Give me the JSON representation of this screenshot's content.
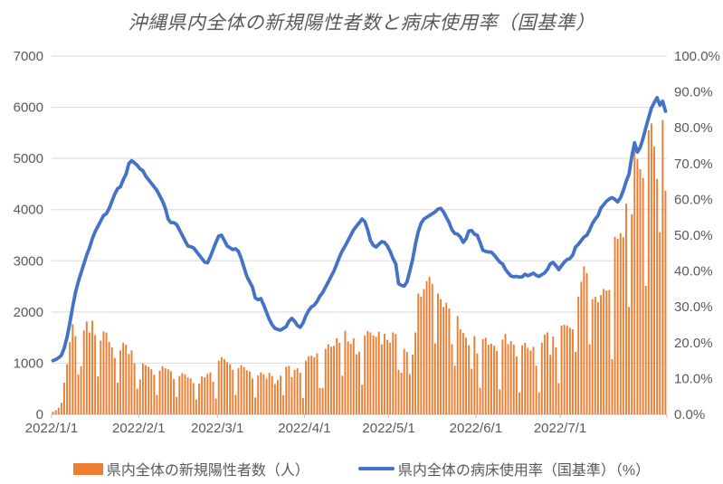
{
  "title": "沖縄県内全体の新規陽性者数と病床使用率（国基準）",
  "chart_data": {
    "type": "combo-bar-line",
    "grid": true,
    "legend_position": "bottom",
    "x_tick_labels": [
      "2022/1/1",
      "2022/2/1",
      "2022/3/1",
      "2022/4/1",
      "2022/5/1",
      "2022/6/1",
      "2022/7/1"
    ],
    "x_tick_day_index": [
      0,
      31,
      59,
      90,
      120,
      151,
      181
    ],
    "left_axis": {
      "min": 0,
      "max": 7000,
      "step": 1000,
      "ticks": [
        "0",
        "1000",
        "2000",
        "3000",
        "4000",
        "5000",
        "6000",
        "7000"
      ]
    },
    "right_axis": {
      "min": 0,
      "max": 100,
      "step": 10,
      "ticks": [
        "0.0%",
        "10.0%",
        "20.0%",
        "30.0%",
        "40.0%",
        "50.0%",
        "60.0%",
        "70.0%",
        "80.0%",
        "90.0%",
        "100.0%"
      ]
    },
    "series": [
      {
        "name": "県内全体の新規陽性者数（人）",
        "type": "bar",
        "axis": "left",
        "color": "#ED7D31",
        "start_date": "2022/1/1",
        "values": [
          50,
          80,
          130,
          225,
          620,
          980,
          1410,
          1760,
          1530,
          780,
          940,
          1640,
          1815,
          1600,
          1830,
          1550,
          740,
          1440,
          1620,
          1600,
          1415,
          1310,
          1100,
          620,
          1250,
          1400,
          1360,
          1180,
          1250,
          1000,
          500,
          680,
          995,
          960,
          930,
          880,
          775,
          380,
          855,
          940,
          900,
          880,
          840,
          690,
          340,
          750,
          805,
          780,
          720,
          700,
          610,
          290,
          600,
          740,
          725,
          790,
          820,
          640,
          310,
          1050,
          1120,
          1080,
          1020,
          980,
          870,
          380,
          900,
          960,
          920,
          860,
          840,
          700,
          330,
          760,
          820,
          780,
          700,
          810,
          750,
          590,
          667,
          754,
          374,
          930,
          947,
          725,
          871,
          900,
          813,
          316,
          1047,
          1134,
          1146,
          1117,
          1193,
          515,
          515,
          1281,
          1368,
          1322,
          1339,
          1485,
          1398,
          754,
          1632,
          1427,
          1380,
          1485,
          1175,
          1222,
          579,
          1544,
          1632,
          1602,
          1544,
          1515,
          1614,
          1368,
          1573,
          1456,
          1400,
          1600,
          1570,
          870,
          815,
          1280,
          1220,
          785,
          1165,
          1600,
          2360,
          2300,
          2450,
          2600,
          2685,
          2550,
          1385,
          2360,
          2250,
          2100,
          2180,
          2070,
          1370,
          950,
          1920,
          1660,
          1590,
          1500,
          1350,
          890,
          1530,
          1190,
          520,
          1470,
          1500,
          1360,
          1380,
          1340,
          1240,
          490,
          1460,
          1570,
          1370,
          1430,
          1360,
          1130,
          430,
          1350,
          1400,
          1300,
          1250,
          1320,
          950,
          430,
          1400,
          1560,
          1600,
          1160,
          1520,
          1310,
          610,
          1730,
          1750,
          1730,
          1690,
          1660,
          1220,
          2300,
          2590,
          2890,
          2760,
          1370,
          2250,
          2300,
          2190,
          2330,
          2450,
          2420,
          2430,
          1080,
          3470,
          3430,
          3540,
          3460,
          4120,
          2100,
          3910,
          5180,
          4990,
          4790,
          4620,
          2510,
          5550,
          5685,
          5230,
          4600,
          3560,
          5750,
          4370
        ]
      },
      {
        "name": "県内全体の病床使用率（国基準）（%）",
        "type": "line",
        "axis": "right",
        "color": "#4472C4",
        "start_date": "2022/1/1",
        "values": [
          15.0,
          15.3,
          15.8,
          16.5,
          18.5,
          21.5,
          25.5,
          30.0,
          34.0,
          37.0,
          39.5,
          42.0,
          44.5,
          46.5,
          49.0,
          51.0,
          52.5,
          54.0,
          55.5,
          56.0,
          57.5,
          59.5,
          61.5,
          63.0,
          63.5,
          65.5,
          67.0,
          70.0,
          70.8,
          70.2,
          69.5,
          68.5,
          68.0,
          66.5,
          65.5,
          64.5,
          63.5,
          62.5,
          61.0,
          59.5,
          57.5,
          54.5,
          53.5,
          53.5,
          53.0,
          51.5,
          50.0,
          48.5,
          47.0,
          46.8,
          46.5,
          45.5,
          44.5,
          43.5,
          42.5,
          42.3,
          44.0,
          46.0,
          48.0,
          49.8,
          50.0,
          48.5,
          47.0,
          46.5,
          46.0,
          46.2,
          45.5,
          43.5,
          41.0,
          38.5,
          37.0,
          35.5,
          32.5,
          32.0,
          32.3,
          30.5,
          28.5,
          26.5,
          25.0,
          24.0,
          23.7,
          23.5,
          24.0,
          24.5,
          26.0,
          26.8,
          26.0,
          24.8,
          24.3,
          25.5,
          27.5,
          29.0,
          30.0,
          30.5,
          31.5,
          33.0,
          34.0,
          35.5,
          37.0,
          38.5,
          40.0,
          42.0,
          44.0,
          45.7,
          47.0,
          48.5,
          50.0,
          51.5,
          52.5,
          53.5,
          54.5,
          53.8,
          51.5,
          48.5,
          47.2,
          46.7,
          47.5,
          48.2,
          48.0,
          47.0,
          45.5,
          43.5,
          42.0,
          36.5,
          36.0,
          35.8,
          37.0,
          40.0,
          43.2,
          47.5,
          51.0,
          53.3,
          54.5,
          55.0,
          55.5,
          56.0,
          56.5,
          57.3,
          57.5,
          56.5,
          55.0,
          53.5,
          51.5,
          50.5,
          50.3,
          49.5,
          48.0,
          49.0,
          51.2,
          51.3,
          50.3,
          50.0,
          48.0,
          45.8,
          45.5,
          45.3,
          45.3,
          44.5,
          43.5,
          42.5,
          42.0,
          40.5,
          39.5,
          38.6,
          38.4,
          38.5,
          38.3,
          38.4,
          39.1,
          38.7,
          39.0,
          39.4,
          38.8,
          38.5,
          39.0,
          39.5,
          40.5,
          42.0,
          42.4,
          41.5,
          40.4,
          41.5,
          42.5,
          43.2,
          43.5,
          44.5,
          46.7,
          47.5,
          48.5,
          49.5,
          50.0,
          51.5,
          53.3,
          54.5,
          55.5,
          57.6,
          58.5,
          59.5,
          60.1,
          60.5,
          60.0,
          59.3,
          60.5,
          62.5,
          65.0,
          67.0,
          72.0,
          75.8,
          73.2,
          74.5,
          77.0,
          80.0,
          82.8,
          85.5,
          87.0,
          88.4,
          86.3,
          87.4,
          84.6
        ]
      }
    ],
    "colors": {
      "gridline": "#D9D9D9",
      "axis_line": "#BFBFBF",
      "label_text": "#595959"
    }
  }
}
